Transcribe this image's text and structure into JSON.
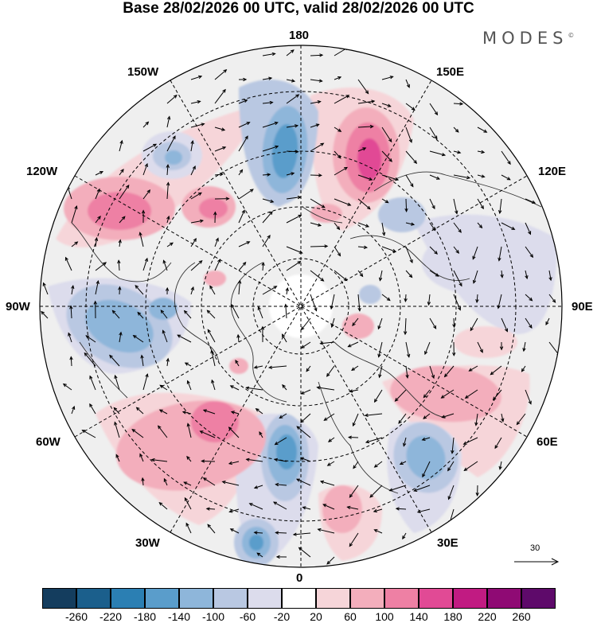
{
  "title": "Base 28/02/2026 00 UTC, valid 28/02/2026 00 UTC",
  "brand": "MODES",
  "brand_mark": "©",
  "longitude_labels": {
    "top": "180",
    "bottom": "0",
    "left": "90W",
    "right": "90E",
    "upper_left_1": "150W",
    "upper_right_1": "150E",
    "upper_left_2": "120W",
    "upper_right_2": "120E",
    "lower_left_2": "60W",
    "lower_right_2": "60E",
    "lower_left_1": "30W",
    "lower_right_1": "30E"
  },
  "reference_vector": {
    "label": "30"
  },
  "colorbar": {
    "ticks": [
      "-260",
      "-220",
      "-180",
      "-140",
      "-100",
      "-60",
      "-20",
      "20",
      "60",
      "100",
      "140",
      "180",
      "220",
      "260"
    ],
    "colors": [
      "#143d5e",
      "#1b5f8c",
      "#2b7fb3",
      "#5a9dcb",
      "#8eb6da",
      "#b9c8e2",
      "#dcdcec",
      "#ffffff",
      "#f6d5d9",
      "#f3aebc",
      "#ee80a4",
      "#e14a95",
      "#c11b82",
      "#8f0a74",
      "#5e0a6a"
    ]
  },
  "map": {
    "projection": "north-polar-stereographic",
    "field": "anomaly",
    "anomaly_centers": [
      {
        "region": "North Pacific west of 180",
        "sign": "negative",
        "level": "-140"
      },
      {
        "region": "Northwest Pacific 150E-180",
        "sign": "positive",
        "level": "180"
      },
      {
        "region": "Alaska / Gulf of Alaska",
        "sign": "negative",
        "level": "-100"
      },
      {
        "region": "Western Canada 120W-135W",
        "sign": "positive",
        "level": "140"
      },
      {
        "region": "Western Canada 120W",
        "sign": "positive",
        "level": "140"
      },
      {
        "region": "Hudson Bay / Eastern Canada",
        "sign": "negative",
        "level": "-100"
      },
      {
        "region": "North Atlantic 40W-60W",
        "sign": "positive",
        "level": "140"
      },
      {
        "region": "Northeast Atlantic near 0",
        "sign": "negative",
        "level": "-140"
      },
      {
        "region": "Eastern Atlantic near 15W",
        "sign": "negative",
        "level": "-140"
      },
      {
        "region": "Western Russia near 40E",
        "sign": "negative",
        "level": "-100"
      },
      {
        "region": "Central Asia near 70E",
        "sign": "positive",
        "level": "60"
      },
      {
        "region": "Siberia near 110E",
        "sign": "negative",
        "level": "-60"
      }
    ]
  }
}
